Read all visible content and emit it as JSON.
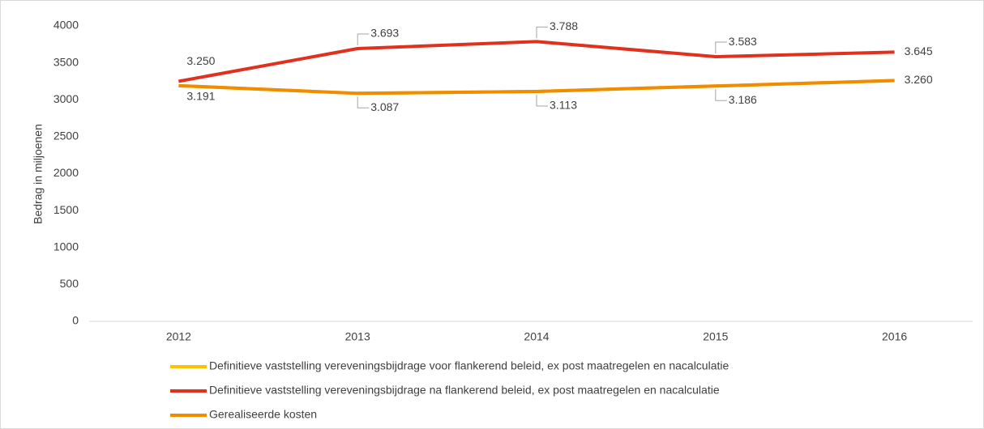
{
  "chart_data": {
    "type": "line",
    "y_label": "Bedrag in miljoenen",
    "categories": [
      "2012",
      "2013",
      "2014",
      "2015",
      "2016"
    ],
    "series": [
      {
        "name": "Definitieve vaststelling vereveningsbijdrage voor flankerend beleid, ex post maatregelen en nacalculatie",
        "color": "#ffc000",
        "values": [
          3191,
          3087,
          3113,
          3186,
          3260
        ]
      },
      {
        "name": "Definitieve vaststelling vereveningsbijdrage na flankerend beleid, ex post maatregelen en nacalculatie",
        "color": "#e0301e",
        "values": [
          3250,
          3693,
          3788,
          3583,
          3645
        ],
        "value_labels": [
          "3.250",
          "3.693",
          "3.788",
          "3.583",
          "3.645"
        ]
      },
      {
        "name": "Gerealiseerde kosten",
        "color": "#f08c00",
        "values": [
          3191,
          3087,
          3113,
          3186,
          3260
        ],
        "value_labels": [
          "3.191",
          "3.087",
          "3.113",
          "3.186",
          "3.260"
        ]
      }
    ],
    "ylim": [
      0,
      4000
    ],
    "yticks": [
      0,
      500,
      1000,
      1500,
      2000,
      2500,
      3000,
      3500,
      4000
    ],
    "grid": false
  }
}
